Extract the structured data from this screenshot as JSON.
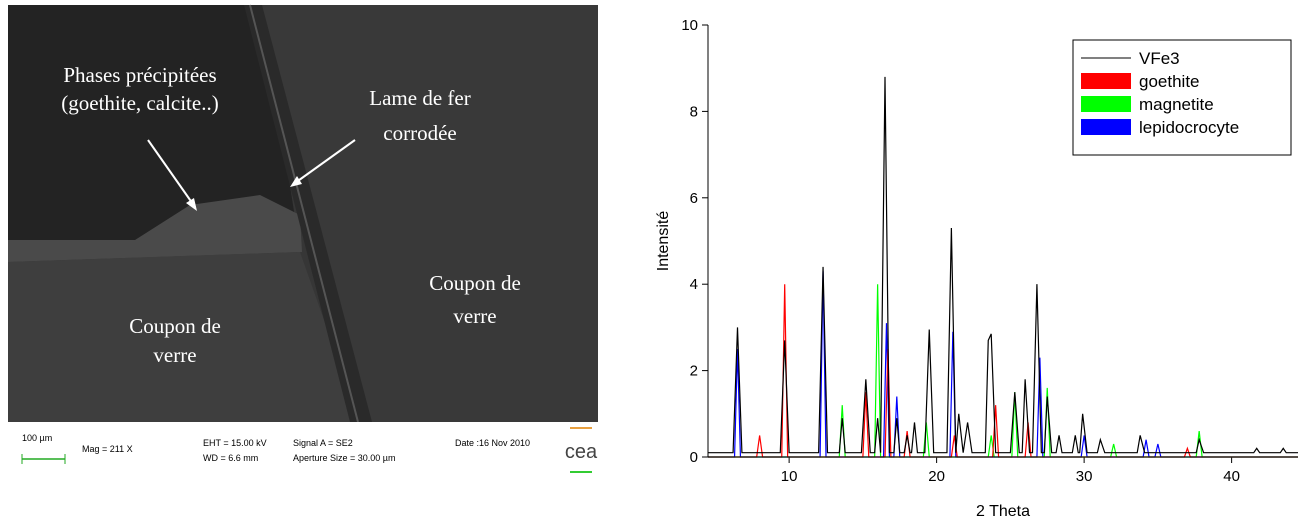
{
  "sem_image": {
    "annotations": [
      {
        "lines": [
          "Phases précipitées",
          "(goethite, calcite..)"
        ]
      },
      {
        "lines": [
          "Lame de fer",
          "corrodée"
        ]
      },
      {
        "lines": [
          "Coupon de",
          "verre"
        ]
      },
      {
        "lines": [
          "Coupon de",
          "verre"
        ]
      }
    ],
    "info_bar": {
      "scale": "100 µm",
      "mag": "Mag =   211 X",
      "eht": "EHT = 15.00 kV",
      "wd": "WD =  6.6 mm",
      "signal": "Signal A = SE2",
      "aperture": "Aperture Size = 30.00 µm",
      "date": "Date :16 Nov 2010",
      "logo": "cea"
    }
  },
  "chart_data": {
    "type": "line",
    "xlabel": "2 Theta",
    "ylabel": "Intensité",
    "xlim": [
      4.5,
      44.5
    ],
    "ylim": [
      0,
      10
    ],
    "xticks": [
      10,
      20,
      30,
      40
    ],
    "yticks": [
      0,
      2,
      4,
      6,
      8,
      10
    ],
    "legend": "upper right",
    "series": [
      {
        "name": "VFe3",
        "color": "#000000",
        "x": [
          4.5,
          6.2,
          6.5,
          6.8,
          9.4,
          9.7,
          10.0,
          12.0,
          12.3,
          12.6,
          13.4,
          13.6,
          13.8,
          14.9,
          15.2,
          15.5,
          15.8,
          16.0,
          16.2,
          16.5,
          16.8,
          17.1,
          17.3,
          17.5,
          17.8,
          18.0,
          18.2,
          18.3,
          18.5,
          18.7,
          19.2,
          19.5,
          19.8,
          20.7,
          21.0,
          21.3,
          21.5,
          21.8,
          22.1,
          22.4,
          23.3,
          23.5,
          23.7,
          24.0,
          25.0,
          25.3,
          25.6,
          25.8,
          26.0,
          26.3,
          26.5,
          26.8,
          27.1,
          27.3,
          27.5,
          27.8,
          28.1,
          28.3,
          28.5,
          29.2,
          29.4,
          29.6,
          29.7,
          29.9,
          30.2,
          30.9,
          31.1,
          31.4,
          33.6,
          33.8,
          34.1,
          37.6,
          37.8,
          38.1,
          41.5,
          41.7,
          41.9,
          43.3,
          43.5,
          43.7,
          44.5
        ],
        "values": [
          0.1,
          0.1,
          3.0,
          0.1,
          0.1,
          2.7,
          0.1,
          0.1,
          4.4,
          0.1,
          0.1,
          0.9,
          0.1,
          0.1,
          1.8,
          0.1,
          0.1,
          0.9,
          0.1,
          8.8,
          0.1,
          0.1,
          0.9,
          0.1,
          0.1,
          0.5,
          0.1,
          0.1,
          0.8,
          0.1,
          0.1,
          2.95,
          0.1,
          0.1,
          5.3,
          0.1,
          1.0,
          0.1,
          0.8,
          0.1,
          0.1,
          2.7,
          2.85,
          0.1,
          0.1,
          1.5,
          0.1,
          0.1,
          1.8,
          0.1,
          0.1,
          4.0,
          0.1,
          0.1,
          1.4,
          0.1,
          0.1,
          0.5,
          0.1,
          0.1,
          0.5,
          0.1,
          0.1,
          1.0,
          0.1,
          0.1,
          0.4,
          0.1,
          0.1,
          0.5,
          0.1,
          0.1,
          0.4,
          0.1,
          0.1,
          0.2,
          0.1,
          0.1,
          0.2,
          0.1,
          0.1
        ]
      },
      {
        "name": "goethite",
        "color": "#ff0000",
        "x": [
          4.5,
          7.8,
          8.0,
          8.2,
          9.5,
          9.7,
          9.9,
          15.0,
          15.2,
          15.4,
          16.5,
          16.7,
          16.9,
          17.8,
          18.0,
          18.2,
          21.0,
          21.2,
          21.4,
          23.8,
          24.0,
          24.2,
          26.0,
          26.2,
          26.4,
          36.8,
          37.0,
          37.2,
          44.5
        ],
        "values": [
          0,
          0,
          0.5,
          0,
          0,
          4.0,
          0,
          0,
          1.5,
          0,
          0,
          2.5,
          0,
          0,
          0.6,
          0,
          0,
          0.5,
          0,
          0,
          1.2,
          0,
          0,
          0.8,
          0,
          0,
          0.2,
          0,
          0
        ]
      },
      {
        "name": "magnetite",
        "color": "#00ff00",
        "x": [
          4.5,
          13.4,
          13.6,
          13.8,
          15.8,
          16.0,
          16.2,
          19.1,
          19.3,
          19.5,
          23.5,
          23.7,
          23.9,
          25.1,
          25.3,
          25.5,
          27.3,
          27.5,
          27.7,
          31.8,
          32.0,
          32.2,
          37.6,
          37.8,
          38.0,
          44.5
        ],
        "values": [
          0,
          0,
          1.2,
          0,
          0,
          4.0,
          0,
          0,
          0.8,
          0,
          0,
          0.5,
          0,
          0,
          1.5,
          0,
          0,
          1.6,
          0,
          0,
          0.3,
          0,
          0,
          0.6,
          0,
          0
        ]
      },
      {
        "name": "lepidocrocyte",
        "color": "#0000ff",
        "x": [
          4.5,
          6.3,
          6.5,
          6.7,
          12.1,
          12.3,
          12.5,
          16.4,
          16.6,
          16.8,
          17.1,
          17.3,
          17.5,
          20.9,
          21.1,
          21.3,
          26.8,
          27.0,
          27.2,
          29.8,
          30.0,
          30.2,
          34.0,
          34.2,
          34.4,
          34.8,
          35.0,
          35.2,
          44.5
        ],
        "values": [
          0,
          0,
          2.5,
          0,
          0,
          4.3,
          0,
          0,
          3.1,
          0,
          0,
          1.4,
          0,
          0,
          2.9,
          0,
          0,
          2.3,
          0,
          0,
          0.5,
          0,
          0,
          0.4,
          0,
          0,
          0.3,
          0,
          0
        ]
      }
    ]
  }
}
